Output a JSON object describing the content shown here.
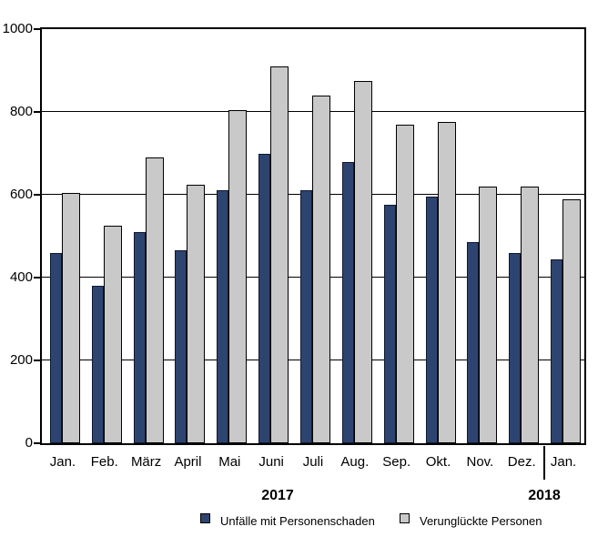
{
  "chart_data": {
    "type": "bar",
    "categories": [
      "Jan.",
      "Feb.",
      "März",
      "April",
      "Mai",
      "Juni",
      "Juli",
      "Aug.",
      "Sep.",
      "Okt.",
      "Nov.",
      "Dez.",
      "Jan."
    ],
    "series": [
      {
        "name": "Unfälle mit Personenschaden",
        "color": "#2e4470",
        "values": [
          460,
          380,
          510,
          465,
          610,
          700,
          610,
          680,
          575,
          595,
          485,
          460,
          445
        ]
      },
      {
        "name": "Verunglückte Personen",
        "color": "#c9c9c9",
        "values": [
          605,
          525,
          690,
          625,
          805,
          910,
          840,
          875,
          770,
          775,
          620,
          620,
          590
        ]
      }
    ],
    "group_years": [
      {
        "label": "2017",
        "span": [
          0,
          11
        ]
      },
      {
        "label": "2018",
        "span": [
          12,
          12
        ]
      }
    ],
    "title": "",
    "xlabel": "",
    "ylabel": "",
    "ylim": [
      0,
      1000
    ],
    "yticks": [
      0,
      200,
      400,
      600,
      800,
      1000
    ],
    "grid": "horizontal",
    "legend_position": "bottom",
    "axis_color": "#000000",
    "background_color": "#ffffff"
  }
}
